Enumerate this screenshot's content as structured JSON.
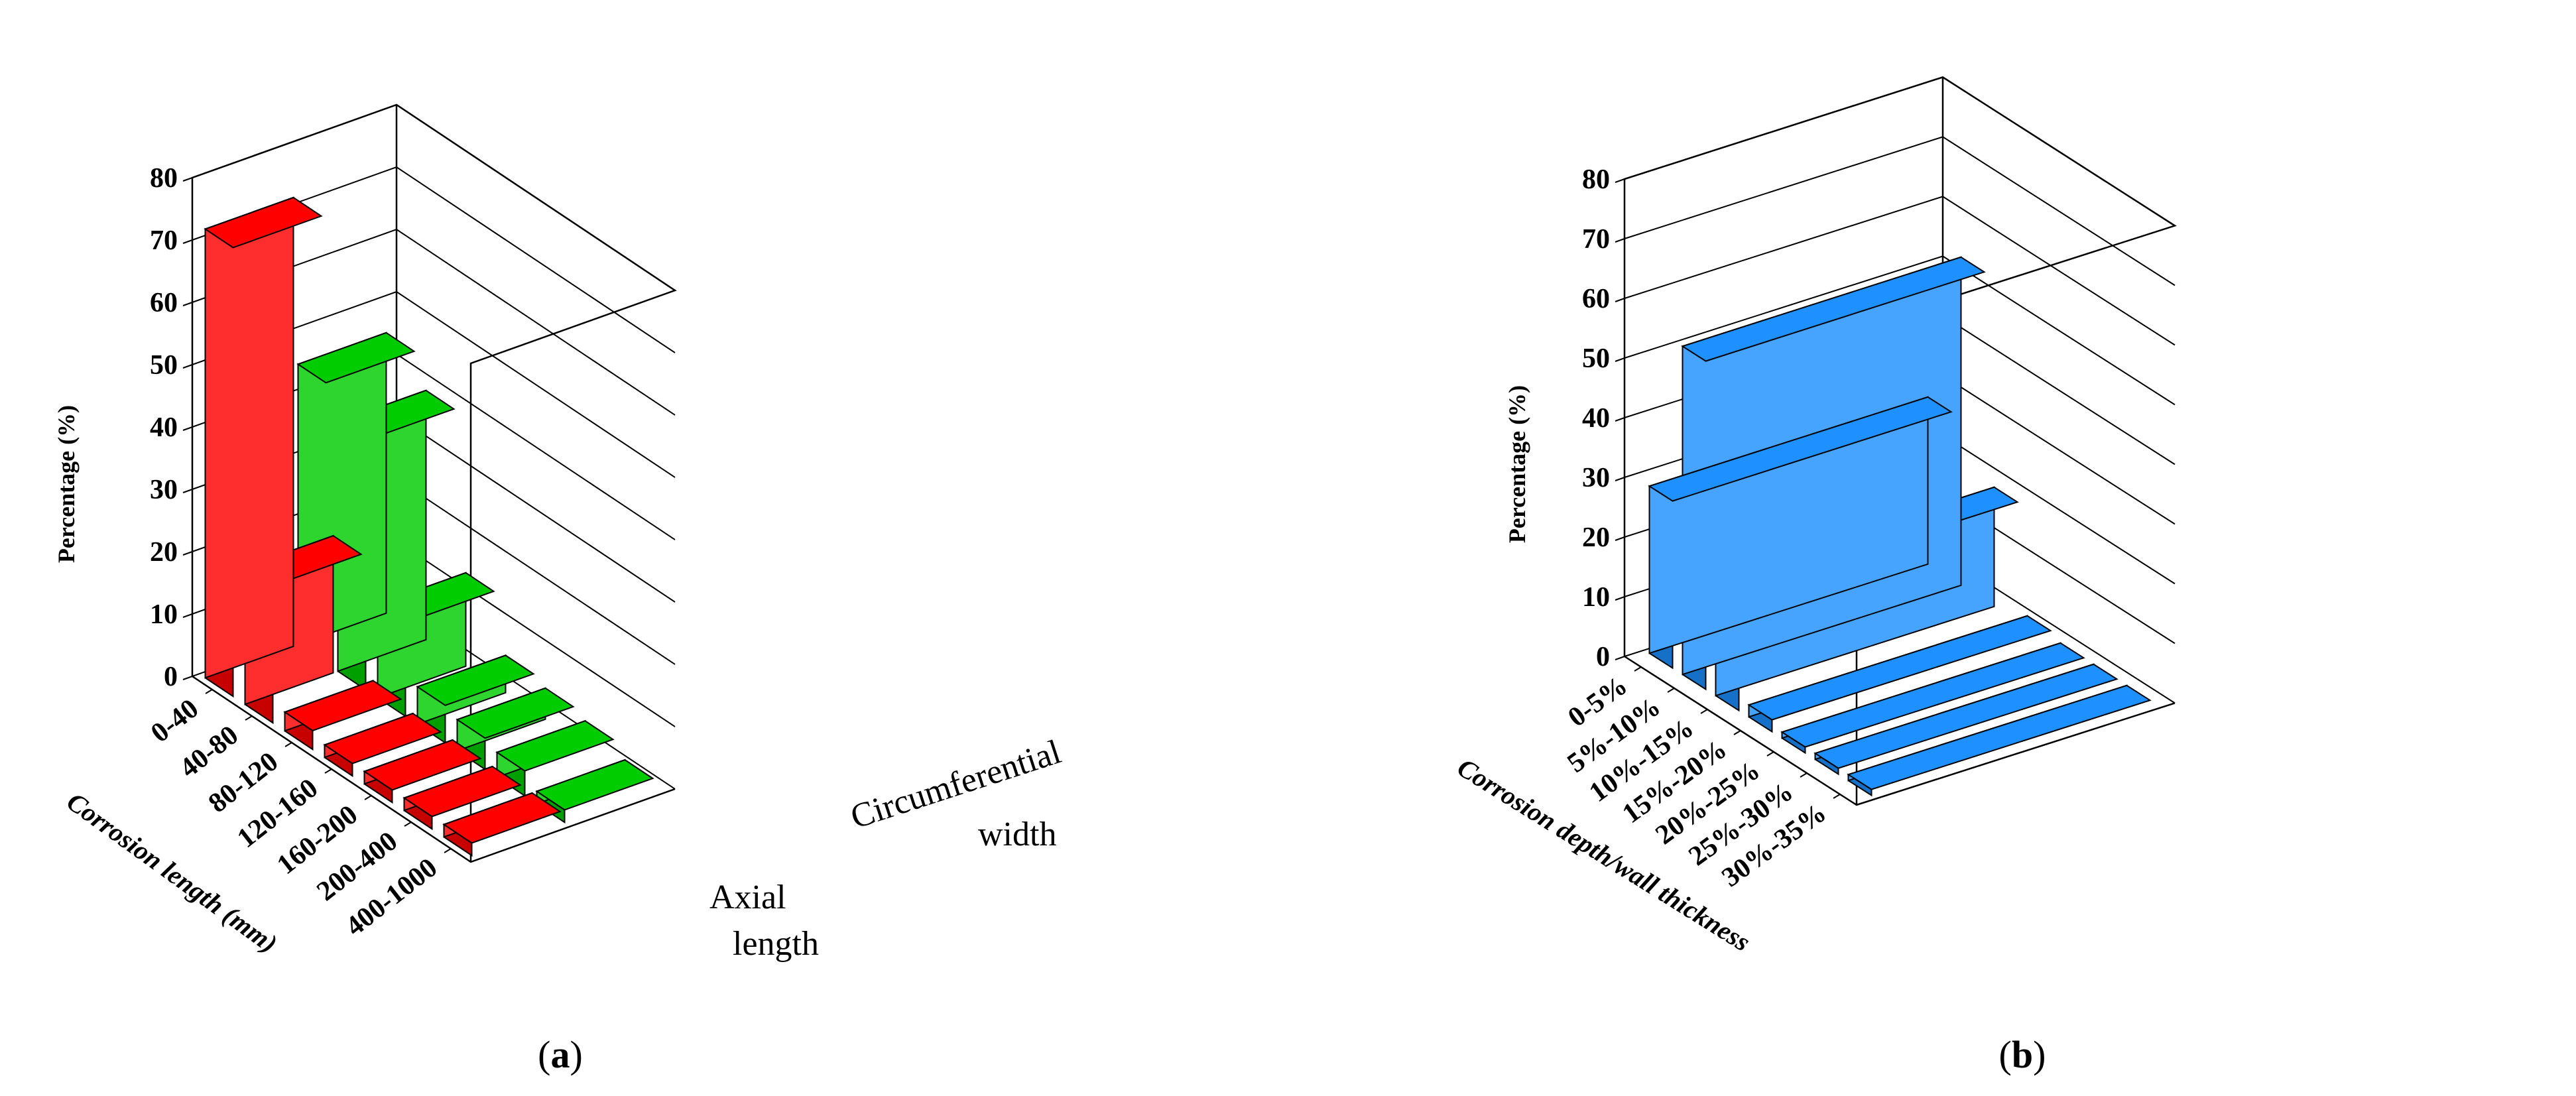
{
  "chart_data": [
    {
      "type": "bar",
      "panel_label": "a",
      "ylabel": "Percentage (%)",
      "xlabel": "Corrosion length (mm)",
      "ylim": [
        0,
        80
      ],
      "yticks": [
        "0",
        "10",
        "20",
        "30",
        "40",
        "50",
        "60",
        "70",
        "80"
      ],
      "categories": [
        "0-40",
        "40-80",
        "80-120",
        "120-160",
        "160-200",
        "200-400",
        "400-1000"
      ],
      "depth_labels": [
        "Axial",
        "length",
        "Circumferential",
        "width"
      ],
      "series": [
        {
          "name": "Axial length",
          "color": "#ff0000",
          "values": [
            72,
            22,
            3,
            2,
            2,
            2,
            2
          ]
        },
        {
          "name": "Circumferential width",
          "color": "#00cc00",
          "values": [
            45,
            40,
            15,
            6,
            5,
            4,
            2
          ]
        }
      ]
    },
    {
      "type": "bar",
      "panel_label": "b",
      "ylabel": "Percentage (%)",
      "xlabel": "Corrosion depth/wall thickness",
      "ylim": [
        0,
        80
      ],
      "yticks": [
        "0",
        "10",
        "20",
        "30",
        "40",
        "50",
        "60",
        "70",
        "80"
      ],
      "categories": [
        "0-5%",
        "5%-10%",
        "10%-15%",
        "15%-20%",
        "20%-25%",
        "25%-30%",
        "30%-35%"
      ],
      "series": [
        {
          "color": "#1e90ff",
          "values": [
            28,
            55,
            20,
            2,
            1,
            1,
            1
          ]
        }
      ]
    }
  ],
  "captions": {
    "open": "(",
    "close": ")"
  }
}
